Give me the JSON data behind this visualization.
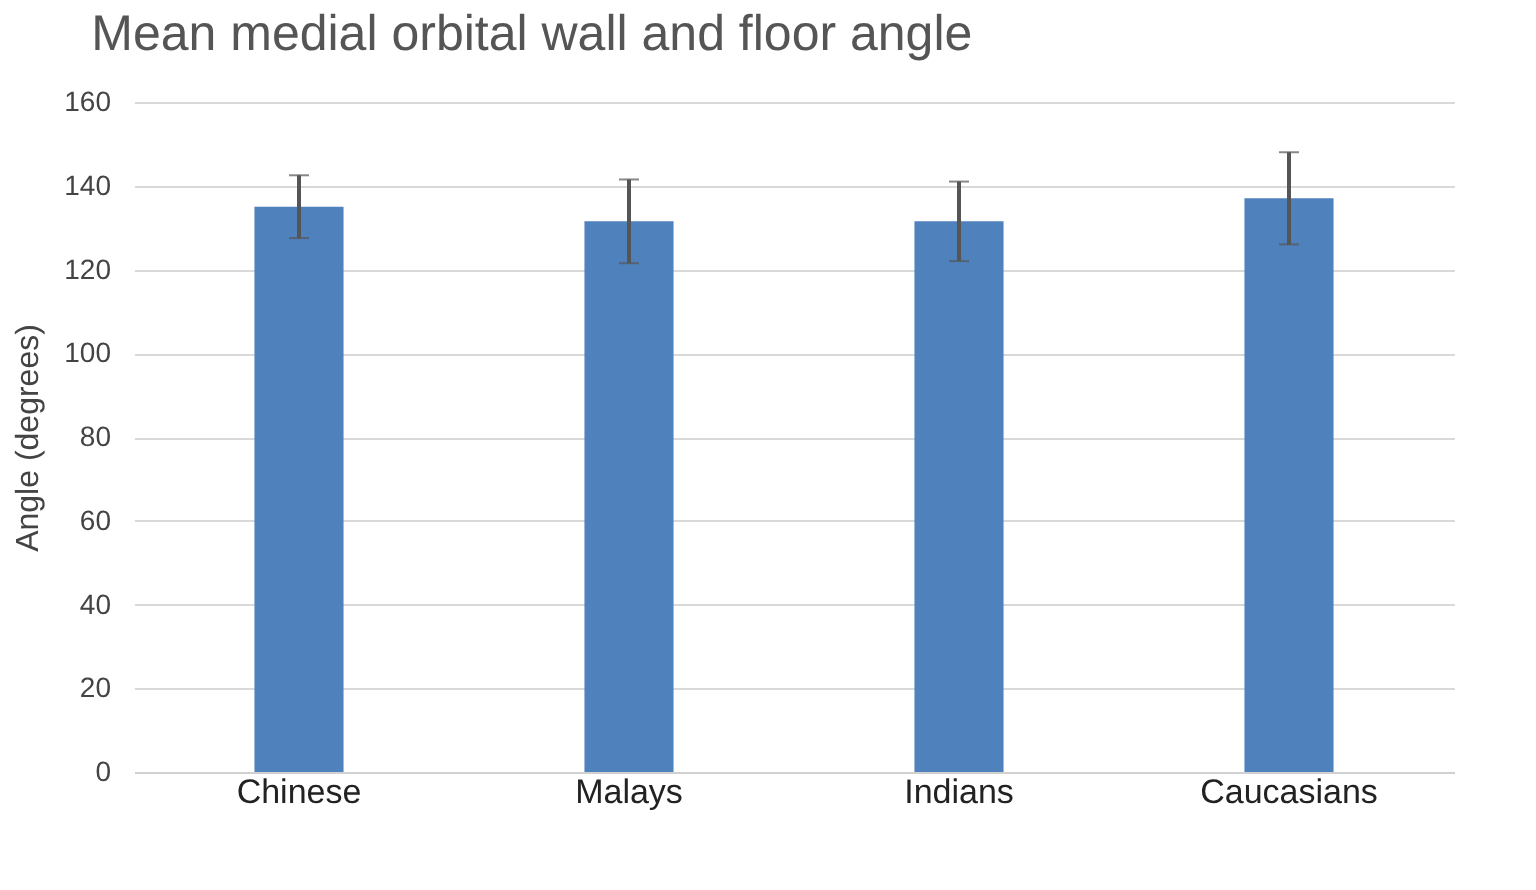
{
  "chart_data": {
    "type": "bar",
    "title": "Mean medial orbital wall and floor angle",
    "ylabel": "Angle (degrees)",
    "categories": [
      "Chinese",
      "Malays",
      "Indians",
      "Caucasians"
    ],
    "values": [
      135,
      131.5,
      131.5,
      137
    ],
    "errors": [
      7.5,
      10,
      9.5,
      11
    ],
    "color": "#4f81bd",
    "ylim": [
      0,
      160
    ],
    "yticks": [
      0,
      20,
      40,
      60,
      80,
      100,
      120,
      140,
      160
    ],
    "grid": "y"
  }
}
